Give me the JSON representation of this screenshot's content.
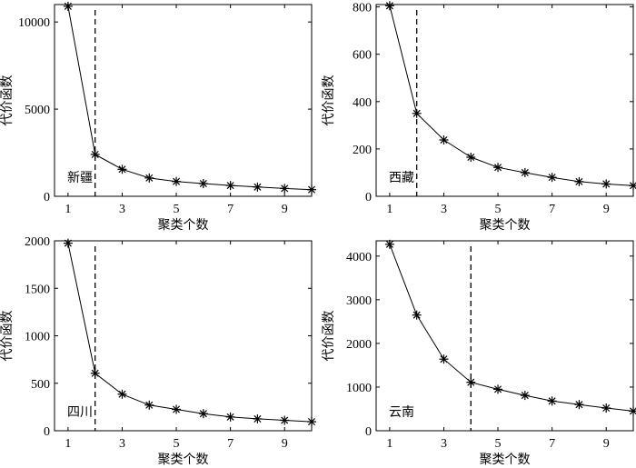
{
  "chart_data": [
    {
      "type": "line",
      "panel_label": "新疆",
      "xlabel": "聚类个数",
      "ylabel": "代价函数",
      "x": [
        1,
        2,
        3,
        4,
        5,
        6,
        7,
        8,
        9,
        10
      ],
      "values": [
        10900,
        2400,
        1550,
        1050,
        850,
        730,
        620,
        530,
        450,
        380
      ],
      "xlim": [
        0.5,
        10
      ],
      "ylim": [
        0,
        11000
      ],
      "xticks": [
        1,
        3,
        5,
        7,
        9
      ],
      "yticks": [
        0,
        5000,
        10000
      ],
      "elbow_x": 2,
      "marker": "asterisk"
    },
    {
      "type": "line",
      "panel_label": "西藏",
      "xlabel": "聚类个数",
      "ylabel": "代价函数",
      "x": [
        1,
        2,
        3,
        4,
        5,
        6,
        7,
        8,
        9,
        10
      ],
      "values": [
        805,
        350,
        238,
        165,
        122,
        100,
        80,
        62,
        52,
        45
      ],
      "xlim": [
        0.5,
        10
      ],
      "ylim": [
        0,
        810
      ],
      "xticks": [
        1,
        3,
        5,
        7,
        9
      ],
      "yticks": [
        0,
        200,
        400,
        600,
        800
      ],
      "elbow_x": 2,
      "marker": "asterisk"
    },
    {
      "type": "line",
      "panel_label": "四川",
      "xlabel": "聚类个数",
      "ylabel": "代价函数",
      "x": [
        1,
        2,
        3,
        4,
        5,
        6,
        7,
        8,
        9,
        10
      ],
      "values": [
        1975,
        605,
        385,
        270,
        225,
        180,
        145,
        125,
        110,
        95
      ],
      "xlim": [
        0.5,
        10
      ],
      "ylim": [
        0,
        2000
      ],
      "xticks": [
        1,
        3,
        5,
        7,
        9
      ],
      "yticks": [
        0,
        500,
        1000,
        1500,
        2000
      ],
      "elbow_x": 2,
      "marker": "asterisk"
    },
    {
      "type": "line",
      "panel_label": "云南",
      "xlabel": "聚类个数",
      "ylabel": "代价函数",
      "x": [
        1,
        2,
        3,
        4,
        5,
        6,
        7,
        8,
        9,
        10
      ],
      "values": [
        4270,
        2650,
        1640,
        1110,
        950,
        810,
        680,
        600,
        520,
        450
      ],
      "xlim": [
        0.5,
        10
      ],
      "ylim": [
        0,
        4350
      ],
      "xticks": [
        1,
        3,
        5,
        7,
        9
      ],
      "yticks": [
        0,
        1000,
        2000,
        3000,
        4000
      ],
      "elbow_x": 4,
      "marker": "asterisk"
    }
  ]
}
